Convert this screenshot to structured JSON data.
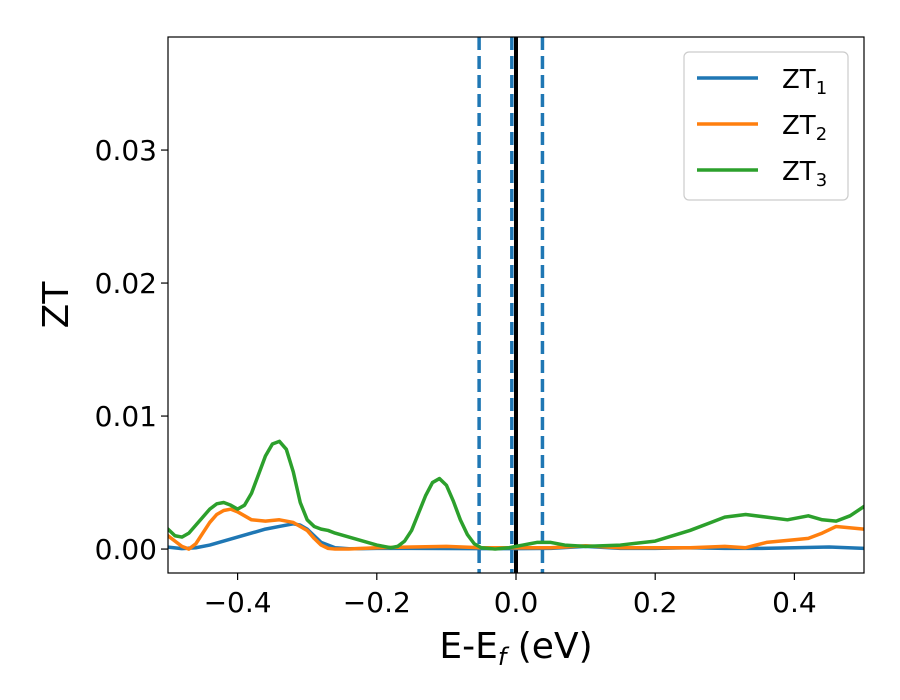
{
  "chart_data": {
    "type": "line",
    "xlabel": "E-E",
    "xlabel_sub": "f",
    "xlabel_unit": " (eV)",
    "ylabel": "ZT",
    "xlim": [
      -0.5,
      0.5
    ],
    "ylim": [
      -0.0018,
      0.0385
    ],
    "xticks": [
      -0.4,
      -0.2,
      0.0,
      0.2,
      0.4
    ],
    "xtick_labels": [
      "−0.4",
      "−0.2",
      "0.0",
      "0.2",
      "0.4"
    ],
    "yticks": [
      0.0,
      0.01,
      0.02,
      0.03
    ],
    "ytick_labels": [
      "0.00",
      "0.01",
      "0.02",
      "0.03"
    ],
    "grid": false,
    "legend_position": "top-right",
    "vlines": [
      {
        "x": -0.053,
        "style": "dashed",
        "color": "#1f77b4"
      },
      {
        "x": -0.006,
        "style": "dashed",
        "color": "#1f77b4"
      },
      {
        "x": 0.038,
        "style": "dashed",
        "color": "#1f77b4"
      },
      {
        "x": 0.0,
        "style": "solid",
        "color": "#000000"
      }
    ],
    "series": [
      {
        "name": "ZT",
        "sub": "1",
        "color": "#1f77b4",
        "x": [
          -0.5,
          -0.48,
          -0.46,
          -0.44,
          -0.42,
          -0.4,
          -0.38,
          -0.36,
          -0.34,
          -0.32,
          -0.31,
          -0.3,
          -0.29,
          -0.28,
          -0.26,
          -0.24,
          -0.22,
          -0.2,
          -0.15,
          -0.1,
          -0.05,
          0.0,
          0.05,
          0.1,
          0.15,
          0.2,
          0.25,
          0.3,
          0.35,
          0.4,
          0.45,
          0.5
        ],
        "y": [
          0.00015,
          3e-05,
          0.0001,
          0.0003,
          0.0006,
          0.0009,
          0.0012,
          0.0015,
          0.0017,
          0.0019,
          0.0018,
          0.0015,
          0.001,
          0.0005,
          0.0001,
          2e-05,
          3e-05,
          5e-05,
          5e-05,
          4e-05,
          3e-05,
          3e-05,
          5e-05,
          0.0002,
          5e-05,
          5e-05,
          0.0001,
          5e-05,
          5e-05,
          0.0001,
          0.00015,
          5e-05
        ]
      },
      {
        "name": "ZT",
        "sub": "2",
        "color": "#ff7f0e",
        "x": [
          -0.5,
          -0.49,
          -0.48,
          -0.47,
          -0.46,
          -0.45,
          -0.44,
          -0.43,
          -0.42,
          -0.41,
          -0.4,
          -0.39,
          -0.38,
          -0.36,
          -0.34,
          -0.32,
          -0.3,
          -0.29,
          -0.28,
          -0.27,
          -0.26,
          -0.24,
          -0.22,
          -0.2,
          -0.15,
          -0.1,
          -0.05,
          0.0,
          0.05,
          0.1,
          0.15,
          0.2,
          0.25,
          0.3,
          0.33,
          0.36,
          0.4,
          0.42,
          0.44,
          0.46,
          0.5
        ],
        "y": [
          0.001,
          0.0006,
          0.0002,
          0.0,
          0.0004,
          0.0012,
          0.002,
          0.0026,
          0.0029,
          0.003,
          0.0028,
          0.0025,
          0.0022,
          0.0021,
          0.0022,
          0.002,
          0.0014,
          0.0008,
          0.0003,
          5e-05,
          0.0,
          0.0,
          5e-05,
          0.0001,
          0.00015,
          0.0002,
          0.0001,
          0.0001,
          0.0001,
          0.00025,
          0.0001,
          0.0001,
          0.0001,
          0.0002,
          0.0001,
          0.0005,
          0.0007,
          0.0008,
          0.0012,
          0.0017,
          0.0015
        ]
      },
      {
        "name": "ZT",
        "sub": "3",
        "color": "#2ca02c",
        "x": [
          -0.5,
          -0.49,
          -0.48,
          -0.47,
          -0.46,
          -0.45,
          -0.44,
          -0.43,
          -0.42,
          -0.41,
          -0.4,
          -0.39,
          -0.38,
          -0.37,
          -0.36,
          -0.35,
          -0.34,
          -0.33,
          -0.32,
          -0.31,
          -0.3,
          -0.29,
          -0.28,
          -0.27,
          -0.26,
          -0.24,
          -0.22,
          -0.2,
          -0.18,
          -0.17,
          -0.16,
          -0.15,
          -0.14,
          -0.13,
          -0.12,
          -0.11,
          -0.1,
          -0.09,
          -0.08,
          -0.07,
          -0.06,
          -0.05,
          -0.04,
          -0.03,
          -0.02,
          -0.01,
          0.0,
          0.01,
          0.02,
          0.03,
          0.05,
          0.07,
          0.1,
          0.15,
          0.2,
          0.25,
          0.28,
          0.3,
          0.33,
          0.36,
          0.39,
          0.42,
          0.44,
          0.46,
          0.48,
          0.5
        ],
        "y": [
          0.0015,
          0.001,
          0.0009,
          0.0012,
          0.0018,
          0.0024,
          0.003,
          0.0034,
          0.0035,
          0.0033,
          0.003,
          0.0033,
          0.0042,
          0.0056,
          0.007,
          0.0079,
          0.0081,
          0.0075,
          0.0058,
          0.0035,
          0.0022,
          0.0017,
          0.0015,
          0.0014,
          0.0012,
          0.0009,
          0.0006,
          0.0003,
          0.0001,
          0.0002,
          0.0006,
          0.0014,
          0.0027,
          0.004,
          0.005,
          0.0053,
          0.0048,
          0.0036,
          0.0022,
          0.0011,
          0.0004,
          0.0001,
          5e-05,
          0.0,
          5e-05,
          0.0001,
          0.0002,
          0.0003,
          0.0004,
          0.0005,
          0.0005,
          0.0003,
          0.0002,
          0.0003,
          0.0006,
          0.0014,
          0.002,
          0.0024,
          0.0026,
          0.0024,
          0.0022,
          0.0025,
          0.0022,
          0.0021,
          0.0025,
          0.0032
        ]
      }
    ]
  }
}
